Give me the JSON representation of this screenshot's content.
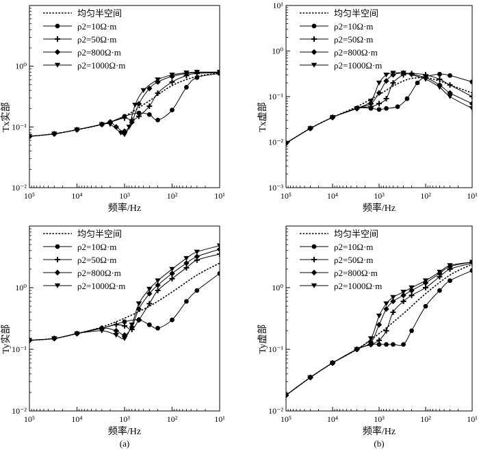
{
  "figure": {
    "caption_a": "(a)",
    "caption_b": "(b)"
  },
  "legend": {
    "entries": [
      {
        "label": "均匀半空间",
        "style": "dotted",
        "marker": "none"
      },
      {
        "label": "ρ2=10Ω·m",
        "style": "solid",
        "marker": "circle"
      },
      {
        "label": "ρ2=50Ω·m",
        "style": "solid",
        "marker": "plus"
      },
      {
        "label": "ρ2=800Ω·m",
        "style": "solid",
        "marker": "diamond"
      },
      {
        "label": "ρ2=1000Ω·m",
        "style": "solid",
        "marker": "triangle-down"
      }
    ]
  },
  "x_ticks": [
    "10⁵",
    "10⁴",
    "10³",
    "10²",
    "10¹"
  ],
  "chart_data": [
    {
      "id": "tx-real",
      "type": "line",
      "ylabel": "Tx实部",
      "xlabel": "频率/Hz",
      "xscale": "log-reversed",
      "xlim": [
        100000,
        10
      ],
      "ylim": [
        0.01,
        10
      ],
      "yticks": [
        "10⁻²",
        "10⁻¹",
        "10⁰"
      ],
      "series": [
        {
          "name": "均匀半空间",
          "x": [
            100000,
            30000,
            10000,
            3000,
            1000,
            300,
            100,
            30,
            10
          ],
          "y": [
            0.07,
            0.077,
            0.09,
            0.11,
            0.15,
            0.27,
            0.48,
            0.68,
            0.76
          ]
        },
        {
          "name": "ρ2=10Ω·m",
          "x": [
            100000,
            30000,
            10000,
            3000,
            2000,
            1000,
            500,
            300,
            200,
            100,
            50,
            30,
            10
          ],
          "y": [
            0.07,
            0.077,
            0.09,
            0.11,
            0.12,
            0.15,
            0.17,
            0.16,
            0.13,
            0.19,
            0.45,
            0.65,
            0.76
          ]
        },
        {
          "name": "ρ2=50Ω·m",
          "x": [
            100000,
            30000,
            10000,
            3000,
            2000,
            1000,
            700,
            500,
            300,
            200,
            100,
            50,
            30,
            10
          ],
          "y": [
            0.07,
            0.077,
            0.09,
            0.11,
            0.12,
            0.14,
            0.13,
            0.15,
            0.22,
            0.36,
            0.55,
            0.7,
            0.76,
            0.78
          ]
        },
        {
          "name": "ρ2=800Ω·m",
          "x": [
            100000,
            30000,
            10000,
            3000,
            2000,
            1500,
            1000,
            700,
            500,
            300,
            200,
            100,
            50,
            30,
            10
          ],
          "y": [
            0.07,
            0.077,
            0.09,
            0.11,
            0.12,
            0.1,
            0.085,
            0.12,
            0.24,
            0.43,
            0.55,
            0.68,
            0.76,
            0.79,
            0.8
          ]
        },
        {
          "name": "ρ2=1000Ω·m",
          "x": [
            100000,
            30000,
            10000,
            3000,
            2000,
            1200,
            1000,
            800,
            600,
            400,
            200,
            100,
            50,
            30,
            10
          ],
          "y": [
            0.07,
            0.077,
            0.09,
            0.11,
            0.11,
            0.08,
            0.075,
            0.1,
            0.23,
            0.4,
            0.6,
            0.72,
            0.78,
            0.8,
            0.8
          ]
        }
      ]
    },
    {
      "id": "tx-imag",
      "type": "line",
      "ylabel": "Tx虚部",
      "xlabel": "频率/Hz",
      "xscale": "log-reversed",
      "xlim": [
        100000,
        10
      ],
      "ylim": [
        0.001,
        10
      ],
      "yticks": [
        "10⁻³",
        "10⁻²",
        "10⁻¹",
        "10⁰",
        "10¹"
      ],
      "series": [
        {
          "name": "均匀半空间",
          "x": [
            100000,
            30000,
            10000,
            3000,
            1000,
            500,
            300,
            200,
            100,
            50,
            30,
            10
          ],
          "y": [
            0.0095,
            0.02,
            0.035,
            0.06,
            0.11,
            0.17,
            0.22,
            0.25,
            0.26,
            0.22,
            0.18,
            0.12
          ]
        },
        {
          "name": "ρ2=10Ω·m",
          "x": [
            100000,
            30000,
            10000,
            3000,
            1500,
            1000,
            700,
            400,
            250,
            150,
            100,
            50,
            30,
            10
          ],
          "y": [
            0.0095,
            0.02,
            0.035,
            0.055,
            0.055,
            0.052,
            0.055,
            0.06,
            0.09,
            0.2,
            0.27,
            0.31,
            0.29,
            0.21
          ]
        },
        {
          "name": "ρ2=50Ω·m",
          "x": [
            100000,
            30000,
            10000,
            3000,
            1500,
            1000,
            700,
            500,
            300,
            200,
            100,
            50,
            30,
            10
          ],
          "y": [
            0.0095,
            0.02,
            0.035,
            0.055,
            0.06,
            0.07,
            0.09,
            0.2,
            0.3,
            0.32,
            0.3,
            0.24,
            0.18,
            0.1
          ]
        },
        {
          "name": "ρ2=800Ω·m",
          "x": [
            100000,
            30000,
            10000,
            3000,
            1500,
            1000,
            700,
            500,
            300,
            200,
            100,
            50,
            30,
            10
          ],
          "y": [
            0.0095,
            0.02,
            0.035,
            0.055,
            0.07,
            0.12,
            0.22,
            0.3,
            0.33,
            0.31,
            0.26,
            0.18,
            0.12,
            0.07
          ]
        },
        {
          "name": "ρ2=1000Ω·m",
          "x": [
            100000,
            30000,
            10000,
            3000,
            1500,
            1000,
            700,
            500,
            300,
            200,
            100,
            50,
            30,
            10
          ],
          "y": [
            0.0095,
            0.02,
            0.035,
            0.055,
            0.08,
            0.2,
            0.3,
            0.33,
            0.33,
            0.3,
            0.24,
            0.16,
            0.1,
            0.055
          ]
        }
      ]
    },
    {
      "id": "ty-real",
      "type": "line",
      "ylabel": "Ty实部",
      "xlabel": "频率/Hz",
      "xscale": "log-reversed",
      "xlim": [
        100000,
        10
      ],
      "ylim": [
        0.01,
        10
      ],
      "yticks": [
        "10⁻²",
        "10⁻¹",
        "10⁰"
      ],
      "series": [
        {
          "name": "均匀半空间",
          "x": [
            100000,
            30000,
            10000,
            3000,
            1000,
            300,
            100,
            30,
            10
          ],
          "y": [
            0.14,
            0.15,
            0.18,
            0.23,
            0.32,
            0.5,
            0.85,
            1.6,
            2.5
          ]
        },
        {
          "name": "ρ2=10Ω·m",
          "x": [
            100000,
            30000,
            10000,
            3000,
            1000,
            500,
            300,
            200,
            100,
            50,
            30,
            10
          ],
          "y": [
            0.14,
            0.15,
            0.18,
            0.22,
            0.28,
            0.3,
            0.25,
            0.22,
            0.3,
            0.6,
            0.9,
            1.7
          ]
        },
        {
          "name": "ρ2=50Ω·m",
          "x": [
            100000,
            30000,
            10000,
            3000,
            1500,
            1000,
            700,
            500,
            300,
            200,
            100,
            50,
            30,
            10
          ],
          "y": [
            0.14,
            0.15,
            0.18,
            0.22,
            0.25,
            0.24,
            0.21,
            0.3,
            0.55,
            0.9,
            1.4,
            2.1,
            2.8,
            3.5
          ]
        },
        {
          "name": "ρ2=800Ω·m",
          "x": [
            100000,
            30000,
            10000,
            3000,
            1500,
            1000,
            700,
            500,
            300,
            200,
            100,
            50,
            30,
            10
          ],
          "y": [
            0.14,
            0.15,
            0.18,
            0.22,
            0.2,
            0.17,
            0.23,
            0.45,
            0.8,
            1.1,
            1.7,
            2.5,
            3.2,
            4.2
          ]
        },
        {
          "name": "ρ2=1000Ω·m",
          "x": [
            100000,
            30000,
            10000,
            3000,
            1500,
            1000,
            700,
            500,
            300,
            200,
            100,
            50,
            30,
            10
          ],
          "y": [
            0.14,
            0.15,
            0.18,
            0.2,
            0.17,
            0.15,
            0.25,
            0.55,
            0.95,
            1.3,
            2.0,
            3.0,
            3.8,
            4.8
          ]
        }
      ]
    },
    {
      "id": "ty-imag",
      "type": "line",
      "ylabel": "Ty虚部",
      "xlabel": "频率/Hz",
      "xscale": "log-reversed",
      "xlim": [
        100000,
        10
      ],
      "ylim": [
        0.01,
        10
      ],
      "yticks": [
        "10⁻²",
        "10⁻¹",
        "10⁰"
      ],
      "series": [
        {
          "name": "均匀半空间",
          "x": [
            100000,
            30000,
            10000,
            3000,
            1000,
            300,
            100,
            30,
            10
          ],
          "y": [
            0.018,
            0.035,
            0.06,
            0.1,
            0.18,
            0.38,
            0.8,
            1.6,
            2.4
          ]
        },
        {
          "name": "ρ2=10Ω·m",
          "x": [
            100000,
            30000,
            10000,
            3000,
            1500,
            1000,
            700,
            500,
            300,
            200,
            100,
            50,
            30,
            10
          ],
          "y": [
            0.018,
            0.035,
            0.06,
            0.1,
            0.12,
            0.12,
            0.12,
            0.12,
            0.12,
            0.2,
            0.5,
            0.9,
            1.3,
            1.9
          ]
        },
        {
          "name": "ρ2=50Ω·m",
          "x": [
            100000,
            30000,
            10000,
            3000,
            1500,
            1000,
            700,
            500,
            300,
            200,
            100,
            50,
            30,
            10
          ],
          "y": [
            0.018,
            0.035,
            0.06,
            0.1,
            0.12,
            0.14,
            0.2,
            0.4,
            0.6,
            0.75,
            1.0,
            1.5,
            2.0,
            2.5
          ]
        },
        {
          "name": "ρ2=800Ω·m",
          "x": [
            100000,
            30000,
            10000,
            3000,
            1500,
            1000,
            700,
            500,
            300,
            200,
            100,
            50,
            30,
            10
          ],
          "y": [
            0.018,
            0.035,
            0.06,
            0.1,
            0.13,
            0.25,
            0.45,
            0.6,
            0.75,
            0.9,
            1.2,
            1.7,
            2.2,
            2.6
          ]
        },
        {
          "name": "ρ2=1000Ω·m",
          "x": [
            100000,
            30000,
            10000,
            3000,
            1500,
            1000,
            700,
            500,
            300,
            200,
            100,
            50,
            30,
            10
          ],
          "y": [
            0.018,
            0.035,
            0.06,
            0.1,
            0.15,
            0.35,
            0.55,
            0.7,
            0.85,
            1.0,
            1.3,
            1.8,
            2.3,
            2.6
          ]
        }
      ]
    }
  ]
}
